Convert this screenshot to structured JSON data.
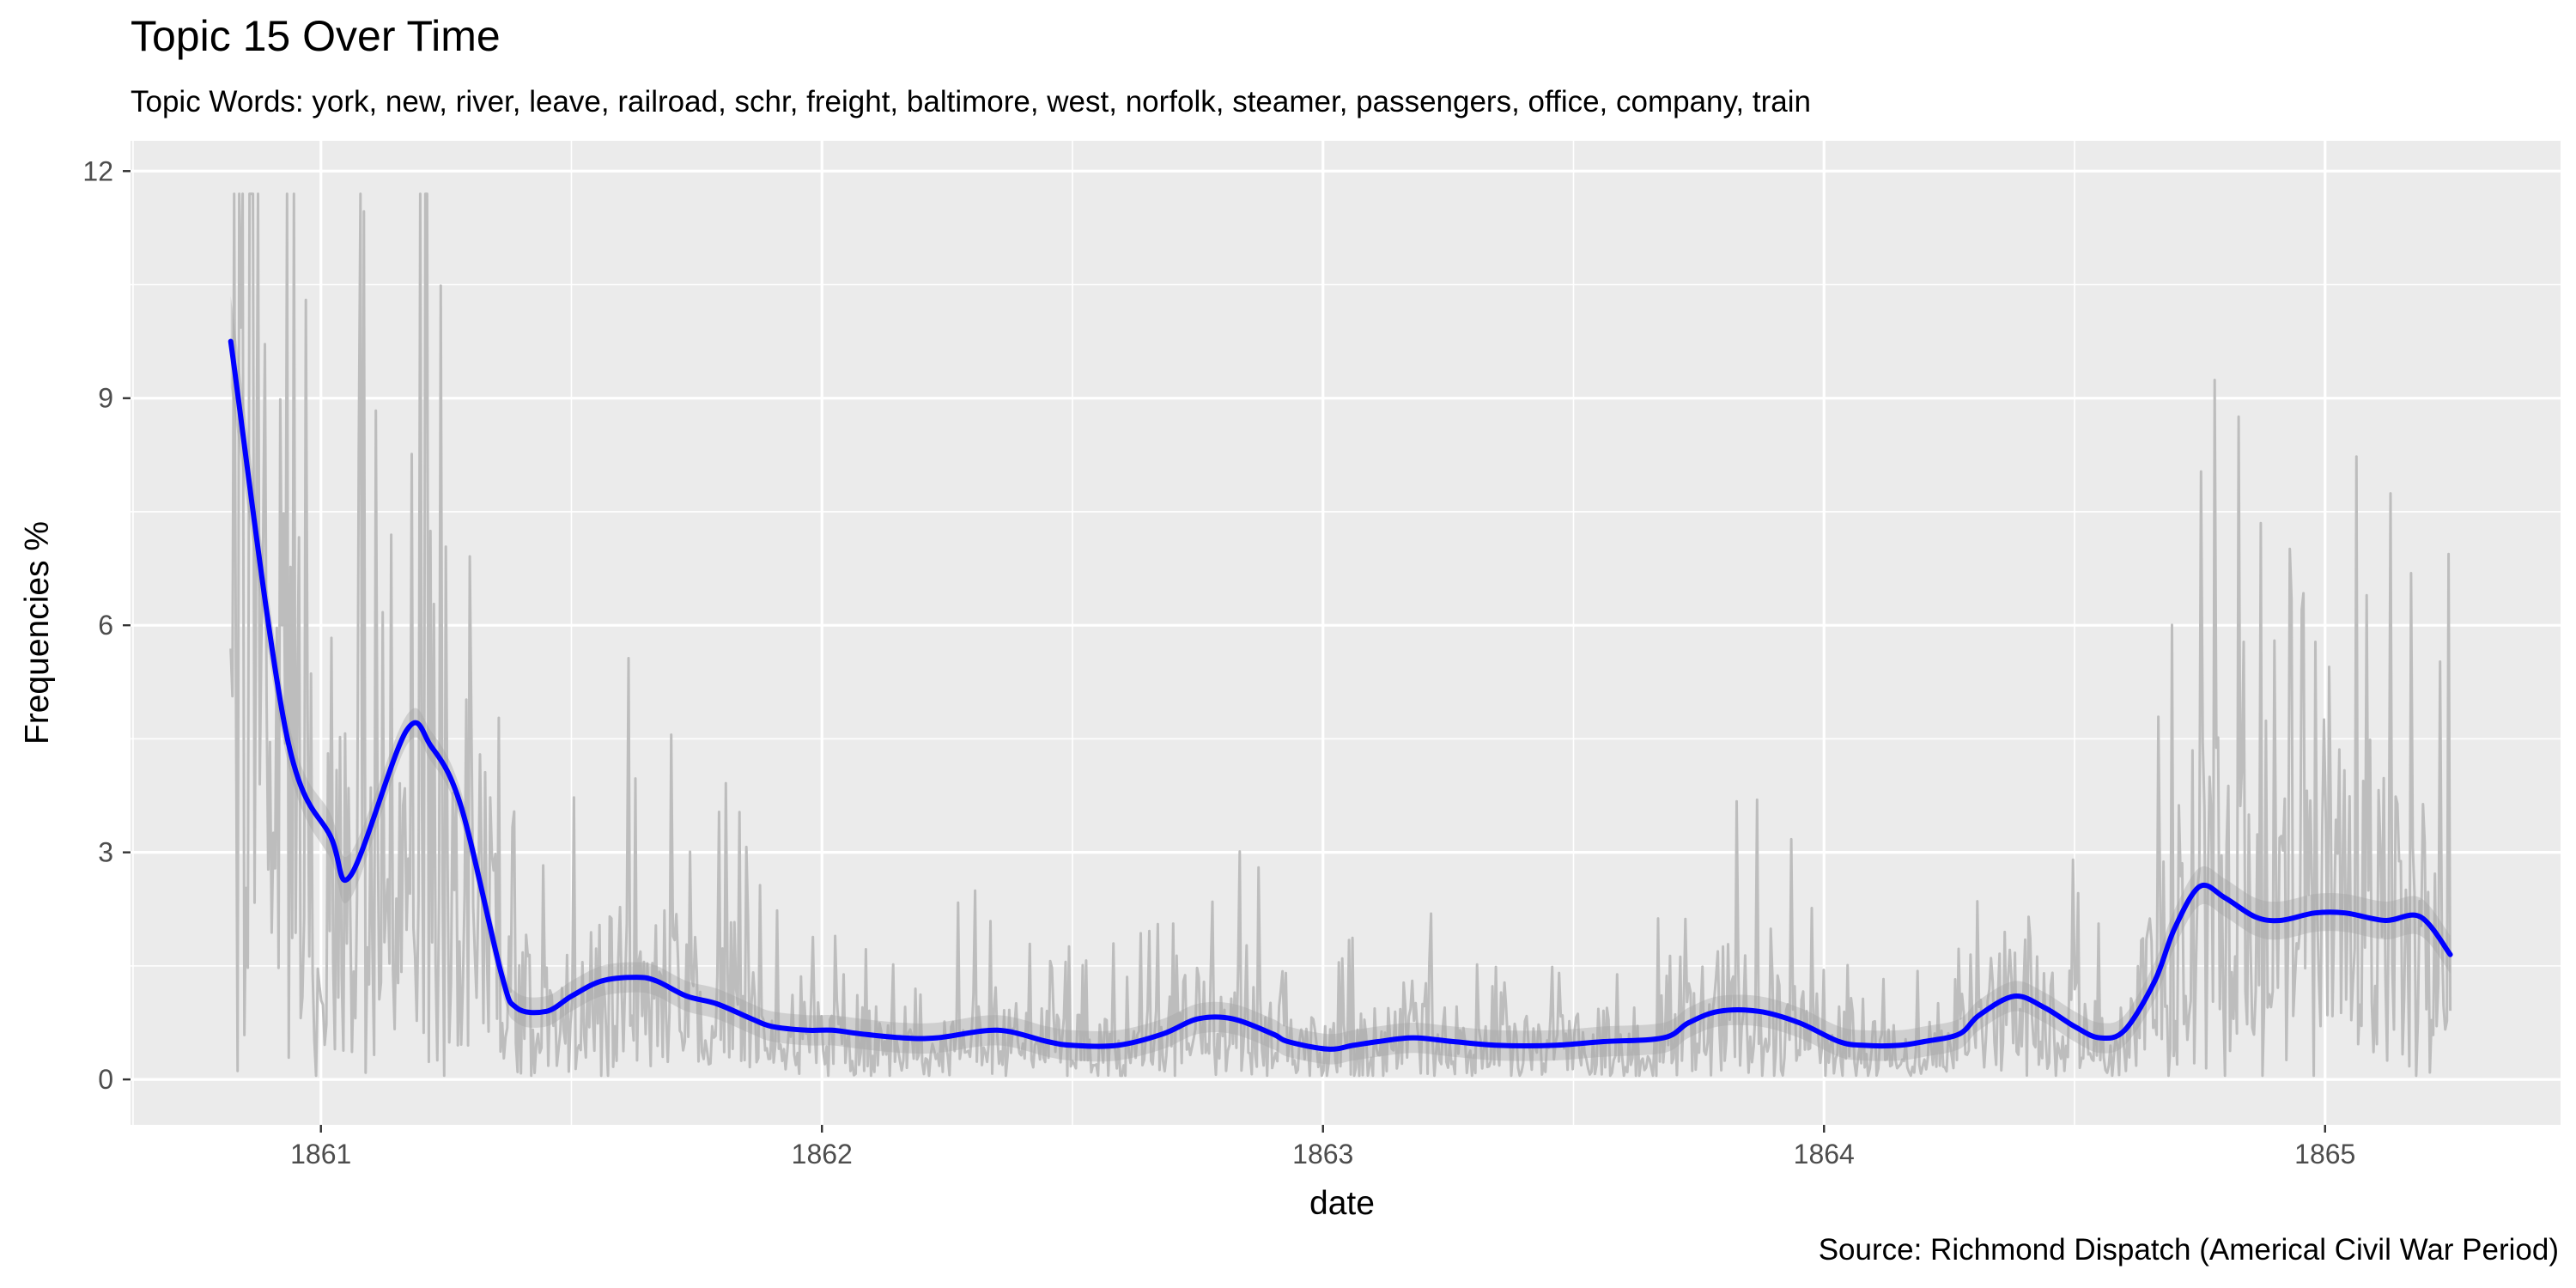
{
  "chart_data": {
    "type": "line",
    "title": "Topic 15 Over Time",
    "subtitle": "Topic Words: york, new, river, leave, railroad, schr, freight, baltimore, west, norfolk, steamer, passengers, office, company, train",
    "xlabel": "date",
    "ylabel": "Frequencies %",
    "caption": "Source: Richmond Dispatch (Americal Civil War Period)",
    "x_ticks": [
      "1861",
      "1862",
      "1863",
      "1864",
      "1865"
    ],
    "y_ticks": [
      "0",
      "3",
      "6",
      "9",
      "12"
    ],
    "xlim": [
      1860.62,
      1865.47
    ],
    "ylim": [
      -0.6,
      12.4
    ],
    "grid": true,
    "background": "#ebebeb",
    "colors": {
      "smooth": "#0000ff",
      "raw": "#bdbdbd",
      "band": "#b3b3b3"
    },
    "series": [
      {
        "kind": "smooth",
        "x": [
          1860.82,
          1860.93,
          1861.02,
          1861.06,
          1861.17,
          1861.22,
          1861.28,
          1861.36,
          1861.39,
          1861.45,
          1861.5,
          1861.56,
          1861.63,
          1861.67,
          1861.73,
          1861.79,
          1861.86,
          1861.9,
          1861.97,
          1862.02,
          1862.08,
          1862.16,
          1862.23,
          1862.35,
          1862.45,
          1862.5,
          1862.59,
          1862.68,
          1862.75,
          1862.82,
          1862.9,
          1862.93,
          1863.01,
          1863.06,
          1863.11,
          1863.18,
          1863.26,
          1863.35,
          1863.46,
          1863.56,
          1863.68,
          1863.73,
          1863.79,
          1863.87,
          1863.95,
          1864.03,
          1864.08,
          1864.15,
          1864.2,
          1864.27,
          1864.31,
          1864.38,
          1864.44,
          1864.5,
          1864.55,
          1864.6,
          1864.66,
          1864.7,
          1864.75,
          1864.8,
          1864.86,
          1864.91,
          1864.98,
          1865.04,
          1865.12,
          1865.19,
          1865.25
        ],
        "y": [
          9.75,
          4.6,
          3.2,
          2.7,
          4.6,
          4.4,
          3.6,
          1.4,
          0.95,
          0.9,
          1.1,
          1.3,
          1.35,
          1.3,
          1.1,
          1.0,
          0.8,
          0.7,
          0.65,
          0.65,
          0.6,
          0.55,
          0.55,
          0.65,
          0.5,
          0.45,
          0.45,
          0.6,
          0.8,
          0.8,
          0.6,
          0.5,
          0.4,
          0.45,
          0.5,
          0.55,
          0.5,
          0.45,
          0.45,
          0.5,
          0.55,
          0.75,
          0.9,
          0.9,
          0.75,
          0.5,
          0.45,
          0.45,
          0.5,
          0.6,
          0.85,
          1.1,
          0.95,
          0.7,
          0.55,
          0.65,
          1.3,
          2.0,
          2.55,
          2.4,
          2.15,
          2.1,
          2.2,
          2.2,
          2.1,
          2.15,
          1.65
        ]
      }
    ]
  }
}
